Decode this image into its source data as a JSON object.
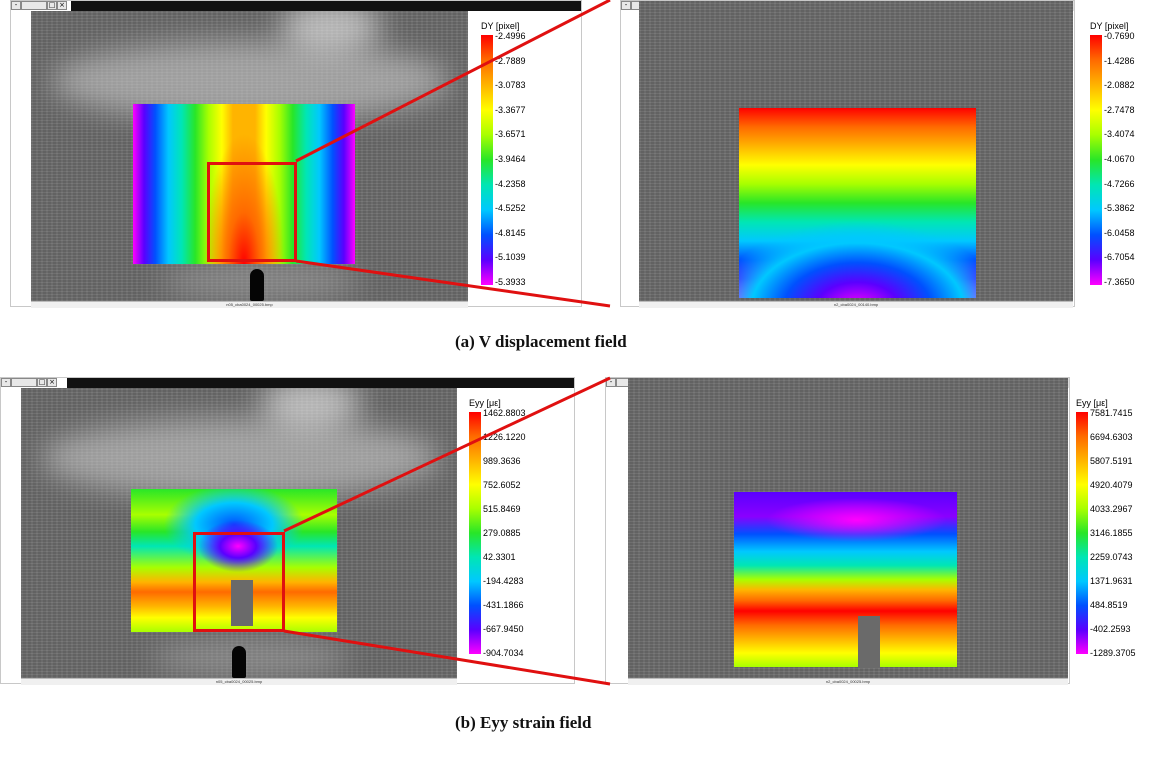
{
  "captions": {
    "a": "(a) V displacement field",
    "b": "(b) Eyy strain field"
  },
  "window_controls": {
    "close_glyph": "×"
  },
  "panels": {
    "a_left": {
      "filename": "n05_cba0024_00025.bmp",
      "colorbar_title": "DY [pixel]",
      "ticks": [
        "-2.4996",
        "-2.7889",
        "-3.0783",
        "-3.3677",
        "-3.6571",
        "-3.9464",
        "-4.2358",
        "-4.5252",
        "-4.8145",
        "-5.1039",
        "-5.3933"
      ]
    },
    "a_right": {
      "filename": "n2_cba0024_00140.bmp",
      "colorbar_title": "DY [pixel]",
      "ticks": [
        "-0.7690",
        "-1.4286",
        "-2.0882",
        "-2.7478",
        "-3.4074",
        "-4.0670",
        "-4.7266",
        "-5.3862",
        "-6.0458",
        "-6.7054",
        "-7.3650"
      ]
    },
    "b_left": {
      "filename": "n05_cba0024_00025.bmp",
      "colorbar_title": "Eyy [με]",
      "ticks": [
        "1462.8803",
        "1226.1220",
        "989.3636",
        "752.6052",
        "515.8469",
        "279.0885",
        "42.3301",
        "-194.4283",
        "-431.1866",
        "-667.9450",
        "-904.7034"
      ]
    },
    "b_right": {
      "filename": "n2_cba0024_00025.bmp",
      "colorbar_title": "Eyy [με]",
      "ticks": [
        "7581.7415",
        "6694.6303",
        "5807.5191",
        "4920.4079",
        "4033.2967",
        "3146.1855",
        "2259.0743",
        "1371.9631",
        "484.8519",
        "-402.2593",
        "-1289.3705"
      ]
    }
  },
  "colors": {
    "zoom_box": "#e01010",
    "colormap": [
      "#ff0000",
      "#ff6a00",
      "#ffb400",
      "#ffff00",
      "#a8ff00",
      "#28e628",
      "#00e6b4",
      "#00c8ff",
      "#0050ff",
      "#5a00ff",
      "#ff00ff"
    ]
  }
}
